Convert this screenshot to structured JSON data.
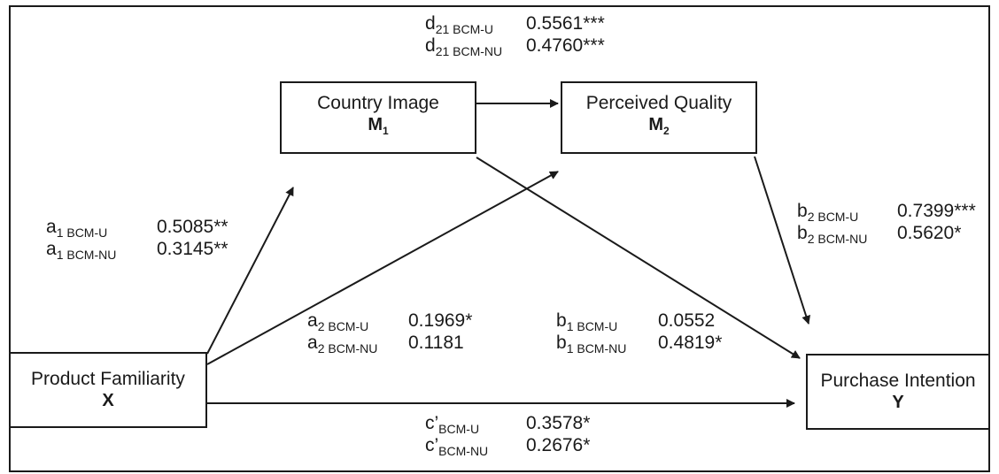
{
  "nodes": {
    "x": {
      "name": "Product Familiarity",
      "symbol": "X",
      "sub": ""
    },
    "m1": {
      "name": "Country Image",
      "symbol": "M",
      "sub": "1"
    },
    "m2": {
      "name": "Perceived Quality",
      "symbol": "M",
      "sub": "2"
    },
    "y": {
      "name": "Purchase Intention",
      "symbol": "Y",
      "sub": ""
    }
  },
  "paths": {
    "d21": [
      {
        "base": "d",
        "sub": "21 BCM-U",
        "value": "0.5561***"
      },
      {
        "base": "d",
        "sub": "21 BCM-NU",
        "value": "0.4760***"
      }
    ],
    "a1": [
      {
        "base": "a",
        "sub": "1 BCM-U",
        "value": "0.5085**"
      },
      {
        "base": "a",
        "sub": "1 BCM-NU",
        "value": "0.3145**"
      }
    ],
    "b2": [
      {
        "base": "b",
        "sub": "2 BCM-U",
        "value": "0.7399***"
      },
      {
        "base": "b",
        "sub": "2 BCM-NU",
        "value": "0.5620*"
      }
    ],
    "a2": [
      {
        "base": "a",
        "sub": "2 BCM-U",
        "value": "0.1969*"
      },
      {
        "base": "a",
        "sub": "2 BCM-NU",
        "value": "0.1181"
      }
    ],
    "b1": [
      {
        "base": "b",
        "sub": "1 BCM-U",
        "value": "0.0552"
      },
      {
        "base": "b",
        "sub": "1 BCM-NU",
        "value": "0.4819*"
      }
    ],
    "c_prime": [
      {
        "base": "c’",
        "sub": "BCM-U",
        "value": "0.3578*"
      },
      {
        "base": "c’",
        "sub": "BCM-NU",
        "value": "0.2676*"
      }
    ]
  }
}
